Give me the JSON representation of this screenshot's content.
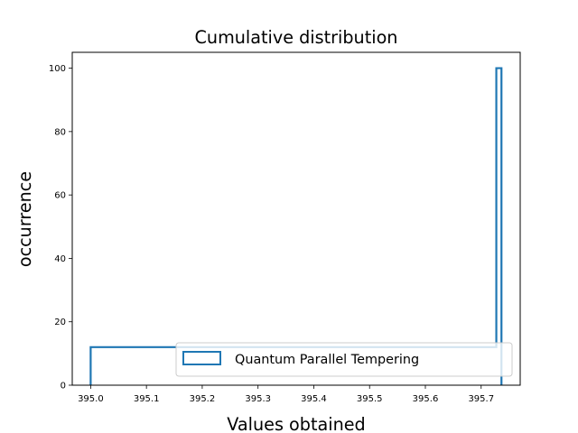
{
  "chart_data": {
    "type": "step-histogram",
    "title": "Cumulative distribution",
    "xlabel": "Values obtained",
    "ylabel": "occurrence",
    "xlim": [
      394.967,
      395.77
    ],
    "ylim": [
      0,
      105
    ],
    "xticks": [
      "395.0",
      "395.1",
      "395.2",
      "395.3",
      "395.4",
      "395.5",
      "395.6",
      "395.7"
    ],
    "yticks": [
      "0",
      "20",
      "40",
      "60",
      "80",
      "100"
    ],
    "series": [
      {
        "name": "Quantum Parallel Tempering",
        "color": "#1f77b4",
        "points": [
          [
            395.0,
            0
          ],
          [
            395.0,
            12
          ],
          [
            395.7272,
            12
          ],
          [
            395.7272,
            100
          ],
          [
            395.7364,
            100
          ],
          [
            395.7364,
            0
          ]
        ]
      }
    ],
    "legend": {
      "position": "lower-right",
      "entries": [
        "Quantum Parallel Tempering"
      ]
    }
  }
}
